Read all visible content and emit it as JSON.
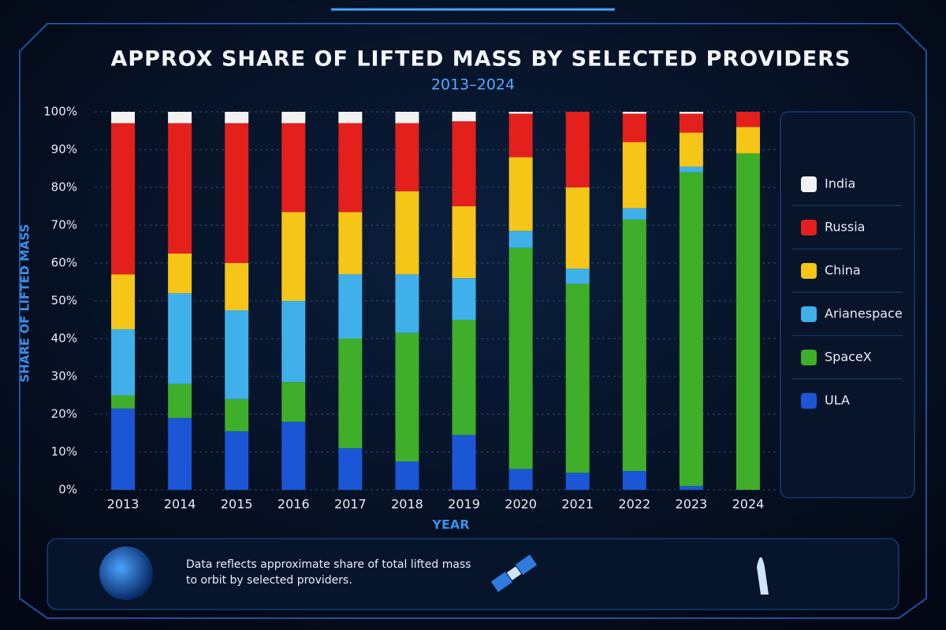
{
  "chart_data": {
    "type": "stacked_bar",
    "title": "APPROX SHARE OF LIFTED MASS BY SELECTED PROVIDERS",
    "subtitle": "2013–2024",
    "y_label": "SHARE OF LIFTED MASS",
    "x_label": "YEAR",
    "categories": [
      "2013",
      "2014",
      "2015",
      "2016",
      "2017",
      "2018",
      "2019",
      "2020",
      "2021",
      "2022",
      "2023",
      "2024"
    ],
    "series": [
      {
        "name": "ULA",
        "color": "#1a56d6",
        "values": [
          21.5,
          19,
          15.5,
          18,
          11,
          7.5,
          14.5,
          5.5,
          4.5,
          5,
          1,
          0
        ]
      },
      {
        "name": "SpaceX",
        "color": "#3fae2a",
        "values": [
          3.5,
          9,
          8.5,
          10.5,
          29,
          34,
          30.5,
          58.5,
          50,
          66.5,
          83,
          89
        ]
      },
      {
        "name": "Arianespace",
        "color": "#3fb0ea",
        "values": [
          17.5,
          24,
          23.5,
          21.5,
          17,
          15.5,
          11,
          4.5,
          4,
          3,
          1.5,
          0
        ]
      },
      {
        "name": "China",
        "color": "#f5c518",
        "values": [
          14.5,
          10.5,
          12.5,
          23.5,
          16.5,
          22,
          19,
          19.5,
          21.5,
          17.5,
          9,
          7
        ]
      },
      {
        "name": "Russia",
        "color": "#e3201b",
        "values": [
          40,
          34.5,
          37,
          23.5,
          23.5,
          18,
          22.5,
          11.5,
          20,
          7.5,
          5,
          4
        ]
      },
      {
        "name": "India",
        "color": "#f2f2f2",
        "values": [
          3,
          3,
          3,
          3,
          3,
          3,
          2.5,
          0.5,
          0,
          0.5,
          0.5,
          0
        ]
      }
    ],
    "ylim": [
      0,
      100
    ],
    "yticks": [
      {
        "value": 0,
        "label": "0%"
      },
      {
        "value": 10,
        "label": "10%"
      },
      {
        "value": 20,
        "label": "20%"
      },
      {
        "value": 30,
        "label": "30%"
      },
      {
        "value": 40,
        "label": "40%"
      },
      {
        "value": 50,
        "label": "50%"
      },
      {
        "value": 60,
        "label": "60%"
      },
      {
        "value": 70,
        "label": "70%"
      },
      {
        "value": 80,
        "label": "80%"
      },
      {
        "value": 90,
        "label": "90%"
      },
      {
        "value": 100,
        "label": "100%"
      }
    ],
    "grid": true,
    "legend": "right",
    "note_lines": [
      "Data reflects approximate share of total lifted mass",
      "to orbit by selected providers."
    ]
  }
}
